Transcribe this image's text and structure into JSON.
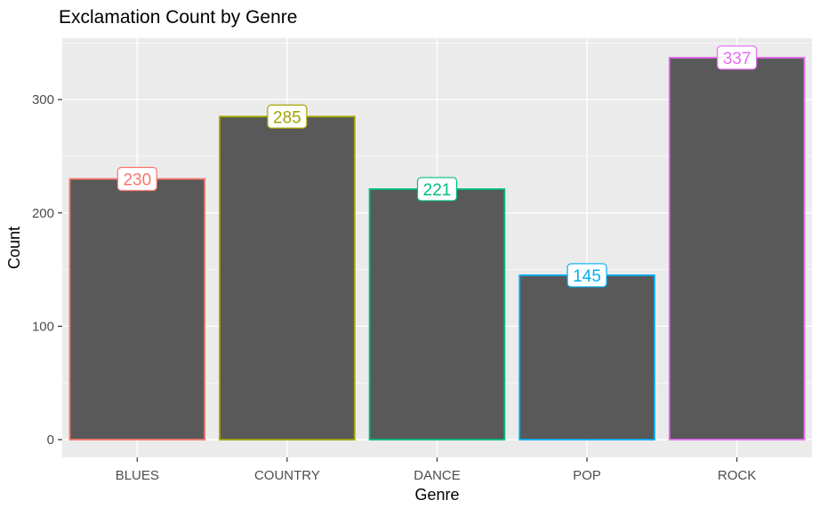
{
  "chart_data": {
    "type": "bar",
    "title": "Exclamation Count by Genre",
    "xlabel": "Genre",
    "ylabel": "Count",
    "categories": [
      "BLUES",
      "COUNTRY",
      "DANCE",
      "POP",
      "ROCK"
    ],
    "values": [
      230,
      285,
      221,
      145,
      337
    ],
    "data_labels": [
      "230",
      "285",
      "221",
      "145",
      "337"
    ],
    "ylim": [
      0,
      350
    ],
    "yticks": [
      0,
      100,
      200,
      300
    ],
    "ytick_labels": [
      "0",
      "100",
      "200",
      "300"
    ],
    "grid": true,
    "legend": "none",
    "bar_fill": "#595959",
    "panel_background": "#EBEBEB",
    "outline_colors": [
      "#F8766D",
      "#A3A500",
      "#00BF7D",
      "#00B0F6",
      "#E76BF3"
    ]
  }
}
